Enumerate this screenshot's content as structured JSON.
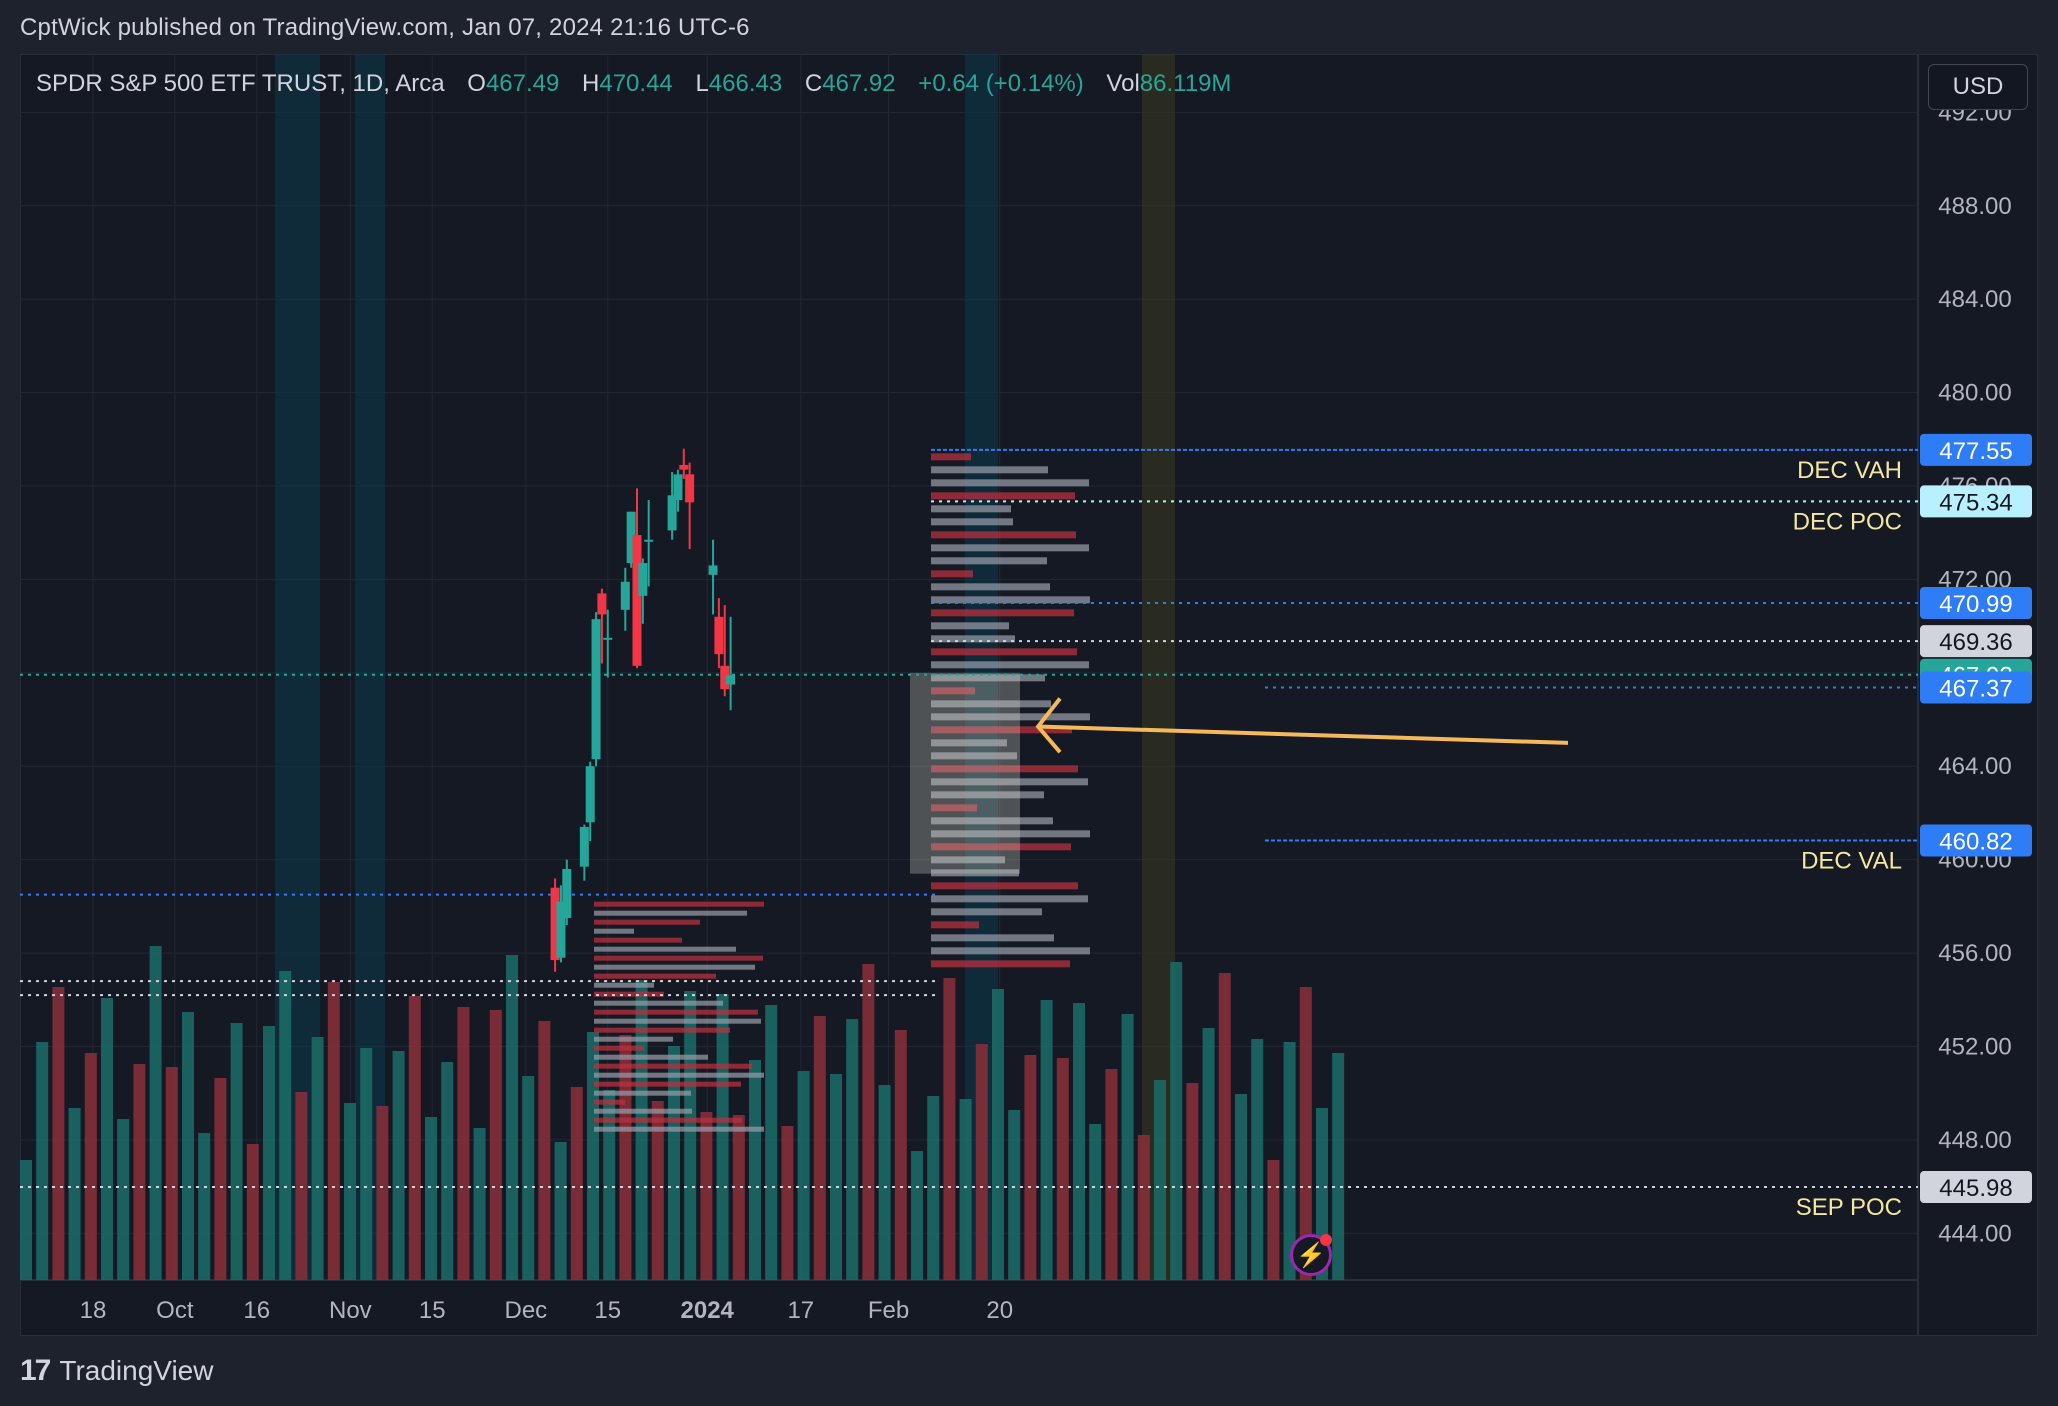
{
  "header": {
    "published_line": "CptWick published on TradingView.com, Jan 07, 2024 21:16 UTC-6"
  },
  "legend": {
    "symbol": "SPDR S&P 500 ETF TRUST, 1D, Arca",
    "o_label": "O",
    "o_value": "467.49",
    "h_label": "H",
    "h_value": "470.44",
    "l_label": "L",
    "l_value": "466.43",
    "c_label": "C",
    "c_value": "467.92",
    "change": "+0.64 (+0.14%)",
    "vol_label": "Vol",
    "vol_value": "86.119M"
  },
  "currency": "USD",
  "footer": {
    "brand": "TradingView",
    "brand_mark": "17"
  },
  "colors": {
    "up": "#26a69a",
    "down": "#f23645",
    "grid": "#232734",
    "level_blue": "#2962ff",
    "level_text": "#f5e6a1",
    "arrow": "#f5b85a"
  },
  "chart_data": {
    "type": "candlestick",
    "title": "",
    "xlabel": "",
    "ylabel": "",
    "ylim": [
      442.0,
      494.5
    ],
    "y_ticks": [
      "492.00",
      "488.00",
      "484.00",
      "480.00",
      "476.00",
      "472.00",
      "468.00",
      "464.00",
      "460.00",
      "456.00",
      "452.00",
      "448.00",
      "444.00"
    ],
    "y_tick_values": [
      492,
      488,
      484,
      480,
      476,
      472,
      468,
      464,
      460,
      456,
      452,
      448,
      444
    ],
    "x_ticks": [
      "18",
      "Oct",
      "16",
      "Nov",
      "15",
      "Dec",
      "15",
      "2024",
      "17",
      "Feb",
      "20"
    ],
    "x_tick_dates": [
      "2023-09-18",
      "2023-10-02",
      "2023-10-16",
      "2023-11-01",
      "2023-11-15",
      "2023-12-01",
      "2023-12-15",
      "2024-01-01",
      "2024-01-17",
      "2024-02-01",
      "2024-02-20"
    ],
    "grid": true,
    "candles": [
      {
        "date": "2023-12-06",
        "o": 458.8,
        "h": 459.2,
        "l": 455.2,
        "c": 455.7
      },
      {
        "date": "2023-12-07",
        "o": 455.8,
        "h": 458.9,
        "l": 455.6,
        "c": 458.2
      },
      {
        "date": "2023-12-08",
        "o": 457.5,
        "h": 460.0,
        "l": 457.2,
        "c": 459.6
      },
      {
        "date": "2023-12-11",
        "o": 459.7,
        "h": 461.5,
        "l": 459.1,
        "c": 461.4
      },
      {
        "date": "2023-12-12",
        "o": 461.6,
        "h": 464.2,
        "l": 460.8,
        "c": 464.0
      },
      {
        "date": "2023-12-13",
        "o": 464.3,
        "h": 470.6,
        "l": 464.0,
        "c": 470.3
      },
      {
        "date": "2023-12-14",
        "o": 471.4,
        "h": 471.6,
        "l": 468.4,
        "c": 470.5
      },
      {
        "date": "2023-12-15",
        "o": 469.5,
        "h": 470.7,
        "l": 467.8,
        "c": 469.5
      },
      {
        "date": "2023-12-18",
        "o": 470.7,
        "h": 472.5,
        "l": 469.8,
        "c": 471.9
      },
      {
        "date": "2023-12-19",
        "o": 472.7,
        "h": 474.9,
        "l": 472.5,
        "c": 474.9
      },
      {
        "date": "2023-12-20",
        "o": 473.9,
        "h": 475.9,
        "l": 468.2,
        "c": 468.3
      },
      {
        "date": "2023-12-21",
        "o": 471.3,
        "h": 472.9,
        "l": 470.1,
        "c": 472.7
      },
      {
        "date": "2023-12-22",
        "o": 473.7,
        "h": 475.4,
        "l": 471.7,
        "c": 473.7
      },
      {
        "date": "2023-12-26",
        "o": 474.1,
        "h": 476.6,
        "l": 473.7,
        "c": 475.6
      },
      {
        "date": "2023-12-27",
        "o": 475.4,
        "h": 476.7,
        "l": 474.9,
        "c": 476.5
      },
      {
        "date": "2023-12-28",
        "o": 476.9,
        "h": 477.6,
        "l": 476.3,
        "c": 476.7
      },
      {
        "date": "2023-12-29",
        "o": 476.5,
        "h": 477.0,
        "l": 473.3,
        "c": 475.3
      },
      {
        "date": "2024-01-02",
        "o": 472.2,
        "h": 473.7,
        "l": 470.5,
        "c": 472.6
      },
      {
        "date": "2024-01-03",
        "o": 470.4,
        "h": 471.2,
        "l": 468.2,
        "c": 468.8
      },
      {
        "date": "2024-01-04",
        "o": 468.3,
        "h": 470.9,
        "l": 467.0,
        "c": 467.3
      },
      {
        "date": "2024-01-05",
        "o": 467.5,
        "h": 470.4,
        "l": 466.4,
        "c": 467.9
      }
    ],
    "levels": [
      {
        "name": "DEC VAH",
        "price": "477.55",
        "value": 477.55
      },
      {
        "name": "DEC POC",
        "price": "475.34",
        "value": 475.34
      },
      {
        "name": "",
        "price": "470.99",
        "value": 470.99
      },
      {
        "name": "",
        "price": "469.36",
        "value": 469.36
      },
      {
        "name": "",
        "price": "467.92",
        "value": 467.92
      },
      {
        "name": "",
        "price": "467.37",
        "value": 467.37
      },
      {
        "name": "DEC VAL",
        "price": "460.82",
        "value": 460.82
      },
      {
        "name": "SEP POC",
        "price": "445.98",
        "value": 445.98
      }
    ],
    "last_price": 467.92
  }
}
